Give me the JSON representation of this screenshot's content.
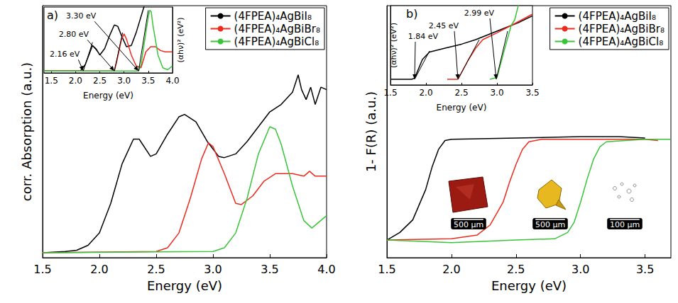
{
  "chart_data": [
    {
      "panel": "a)",
      "type": "line",
      "x_label": "Energy (eV)",
      "y_label": "corr. Absorption (a.u.)",
      "xlim": [
        1.5,
        4.0
      ],
      "xticks": [
        1.5,
        {
          "value": 2,
          "label": "2.0"
        },
        2.5,
        {
          "value": 3,
          "label": "3.0"
        },
        3.5,
        {
          "value": 4,
          "label": "4.0"
        }
      ],
      "ylim": [
        -0.02,
        1
      ],
      "tick_labels": "x",
      "grid": false,
      "legend": "top-right",
      "series": [
        {
          "name": "(4FPEA)₄AgBiI₈",
          "color": "#000000",
          "x": [
            1.5,
            1.7,
            1.8,
            1.9,
            2.0,
            2.1,
            2.2,
            2.3,
            2.35,
            2.45,
            2.5,
            2.6,
            2.7,
            2.75,
            2.85,
            2.95,
            3.05,
            3.1,
            3.2,
            3.3,
            3.4,
            3.5,
            3.6,
            3.7,
            3.75,
            3.78,
            3.82,
            3.86,
            3.9,
            3.95,
            4.0
          ],
          "values": [
            0,
            0.005,
            0.01,
            0.03,
            0.08,
            0.2,
            0.36,
            0.46,
            0.46,
            0.39,
            0.4,
            0.48,
            0.55,
            0.56,
            0.53,
            0.45,
            0.39,
            0.385,
            0.4,
            0.45,
            0.51,
            0.57,
            0.6,
            0.65,
            0.72,
            0.66,
            0.62,
            0.67,
            0.6,
            0.67,
            0.66
          ]
        },
        {
          "name": "(4FPEA)₄AgBiBr₈",
          "color": "#ed2a1d",
          "x": [
            1.5,
            2.5,
            2.6,
            2.7,
            2.8,
            2.9,
            2.96,
            3.0,
            3.1,
            3.2,
            3.25,
            3.35,
            3.45,
            3.55,
            3.7,
            3.8,
            3.85,
            3.9,
            4.0
          ],
          "values": [
            0,
            0.005,
            0.02,
            0.08,
            0.22,
            0.38,
            0.445,
            0.43,
            0.32,
            0.2,
            0.195,
            0.23,
            0.29,
            0.32,
            0.32,
            0.31,
            0.33,
            0.31,
            0.31
          ]
        },
        {
          "name": "(4FPEA)₄AgBiCl₈",
          "color": "#39c43a",
          "x": [
            1.5,
            3.0,
            3.1,
            3.2,
            3.3,
            3.4,
            3.5,
            3.55,
            3.6,
            3.7,
            3.8,
            3.87,
            4.0
          ],
          "values": [
            0,
            0.005,
            0.02,
            0.08,
            0.22,
            0.4,
            0.51,
            0.5,
            0.44,
            0.27,
            0.13,
            0.1,
            0.15
          ]
        }
      ],
      "inset": {
        "type": "line",
        "x_label": "Energy (eV)",
        "y_label": "(αhν)² (eV²)",
        "xlim": [
          1.35,
          4.0
        ],
        "xticks": [
          1.5,
          {
            "value": 2,
            "label": "2.0"
          },
          2.5,
          {
            "value": 3,
            "label": "3.0"
          },
          3.5,
          {
            "value": 4,
            "label": "4.0"
          }
        ],
        "ylim": [
          -0.03,
          1
        ],
        "tick_labels": "x",
        "grid": false,
        "series": [
          {
            "color": "#000000",
            "x": [
              1.35,
              2.1,
              2.2,
              2.3,
              2.35,
              2.42,
              2.5,
              2.6,
              2.7,
              2.8,
              2.87,
              2.95,
              3.05,
              3.15,
              3.25,
              3.35,
              3.45
            ],
            "values": [
              0,
              0,
              0.1,
              0.3,
              0.4,
              0.35,
              0.25,
              0.35,
              0.55,
              0.72,
              0.7,
              0.55,
              0.38,
              0.4,
              0.6,
              0.85,
              1.1
            ]
          },
          {
            "color": "#ed2a1d",
            "x": [
              1.35,
              2.8,
              2.85,
              2.9,
              2.95,
              3.0,
              3.05,
              3.15,
              3.25,
              3.35,
              3.45,
              3.55,
              3.65,
              3.75,
              3.85,
              4.0
            ],
            "values": [
              0,
              0,
              0.15,
              0.33,
              0.5,
              0.58,
              0.5,
              0.25,
              0.08,
              0.05,
              0.3,
              0.38,
              0.38,
              0.32,
              0.3,
              0.3
            ]
          },
          {
            "color": "#39c43a",
            "x": [
              1.35,
              3.3,
              3.35,
              3.4,
              3.45,
              3.5,
              3.53,
              3.56,
              3.6,
              3.7,
              3.8,
              3.9,
              4.0
            ],
            "values": [
              0,
              0,
              0.1,
              0.35,
              0.6,
              0.85,
              0.95,
              0.93,
              0.7,
              0.25,
              0.05,
              0.02,
              0.08
            ]
          }
        ],
        "annotations": [
          {
            "text": "2.16 eV",
            "x": 2.16,
            "y": 0,
            "fit_to": [
              2.35,
              0.45
            ]
          },
          {
            "text": "2.80 eV",
            "x": 2.8,
            "y": 0,
            "fit_to": [
              2.97,
              0.6
            ]
          },
          {
            "text": "3.30 eV",
            "x": 3.3,
            "y": 0,
            "fit_to": [
              3.5,
              0.95
            ]
          }
        ]
      }
    },
    {
      "panel": "b)",
      "type": "line",
      "x_label": "Energy (eV)",
      "y_label": "1- F(R) (a.u.)",
      "xlim": [
        1.5,
        3.7
      ],
      "xticks": [
        1.5,
        {
          "value": 2,
          "label": "2.0"
        },
        2.5,
        {
          "value": 3,
          "label": "3.0"
        },
        3.5
      ],
      "ylim": [
        0,
        1
      ],
      "tick_labels": "x",
      "grid": false,
      "legend": "top-right",
      "series": [
        {
          "name": "(4FPEA)₄AgBiI₈",
          "color": "#000000",
          "x": [
            1.5,
            1.6,
            1.7,
            1.8,
            1.85,
            1.9,
            1.95,
            2.0,
            2.5,
            3.0,
            3.3,
            3.5
          ],
          "values": [
            0.07,
            0.1,
            0.15,
            0.27,
            0.36,
            0.43,
            0.465,
            0.47,
            0.475,
            0.48,
            0.48,
            0.475
          ]
        },
        {
          "name": "(4FPEA)₄AgBiBr₈",
          "color": "#ed2a1d",
          "x": [
            1.5,
            2.0,
            2.2,
            2.3,
            2.4,
            2.45,
            2.5,
            2.55,
            2.6,
            2.7,
            3.0,
            3.5,
            3.6
          ],
          "values": [
            0.07,
            0.075,
            0.09,
            0.13,
            0.22,
            0.3,
            0.37,
            0.43,
            0.46,
            0.47,
            0.47,
            0.47,
            0.465
          ]
        },
        {
          "name": "(4FPEA)₄AgBiCl₈",
          "color": "#39c43a",
          "x": [
            1.5,
            2.0,
            2.5,
            2.8,
            2.9,
            2.95,
            3.0,
            3.05,
            3.1,
            3.15,
            3.2,
            3.5,
            3.7
          ],
          "values": [
            0.07,
            0.06,
            0.07,
            0.075,
            0.1,
            0.14,
            0.22,
            0.31,
            0.39,
            0.44,
            0.46,
            0.47,
            0.47
          ]
        }
      ],
      "scale_bars": [
        "500 µm",
        "500 µm",
        "100 µm"
      ],
      "inset": {
        "type": "line",
        "x_label": "Energy (eV)",
        "y_label": "(αhν)² (eV²)",
        "xlim": [
          1.5,
          3.5
        ],
        "xticks": [
          1.5,
          {
            "value": 2,
            "label": "2.0"
          },
          2.5,
          {
            "value": 3,
            "label": "3.0"
          },
          3.5
        ],
        "ylim": [
          -0.1,
          1.3
        ],
        "tick_labels": "x",
        "grid": false,
        "series": [
          {
            "color": "#000000",
            "x": [
              1.5,
              1.8,
              1.84,
              1.95,
              2.05,
              2.3,
              2.5,
              2.7,
              2.9,
              3.1,
              3.3,
              3.5
            ],
            "values": [
              0,
              0,
              0.02,
              0.35,
              0.48,
              0.56,
              0.62,
              0.7,
              0.8,
              0.9,
              1.0,
              1.12
            ]
          },
          {
            "color": "#ed2a1d",
            "x": [
              2.3,
              2.45,
              2.6,
              2.7,
              2.8,
              3.0,
              3.2,
              3.35,
              3.5
            ],
            "values": [
              0,
              0,
              0.35,
              0.55,
              0.7,
              0.82,
              0.95,
              1.05,
              1.15
            ]
          },
          {
            "color": "#39c43a",
            "x": [
              2.9,
              3.0,
              3.1,
              3.2,
              3.25,
              3.32
            ],
            "values": [
              0,
              0.03,
              0.5,
              0.95,
              1.05,
              1.4
            ]
          }
        ],
        "annotations": [
          {
            "text": "1.84 eV",
            "x": 1.84,
            "y": 0,
            "fit_to": [
              2.05,
              0.5
            ]
          },
          {
            "text": "2.45 eV",
            "x": 2.45,
            "y": 0,
            "fit_to": [
              2.75,
              0.7
            ]
          },
          {
            "text": "2.99 eV",
            "x": 2.99,
            "y": 0,
            "fit_to": [
              3.15,
              0.85
            ]
          }
        ]
      }
    }
  ]
}
